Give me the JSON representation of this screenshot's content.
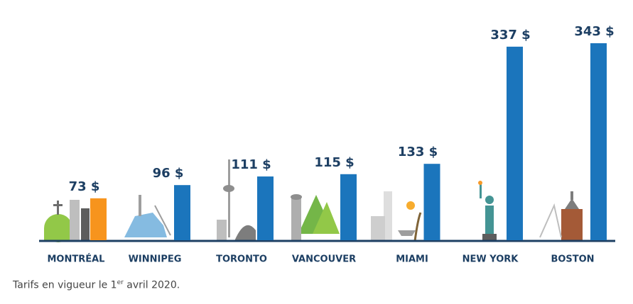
{
  "chart_data": {
    "type": "bar",
    "categories": [
      "MONTRÉAL",
      "WINNIPEG",
      "TORONTO",
      "VANCOUVER",
      "MIAMI",
      "NEW YORK",
      "BOSTON"
    ],
    "values": [
      73,
      96,
      111,
      115,
      133,
      337,
      343
    ],
    "value_labels": [
      "73 $",
      "96 $",
      "111 $",
      "115 $",
      "133 $",
      "337 $",
      "343 $"
    ],
    "colors": [
      "#f7941d",
      "#1b75bc",
      "#1b75bc",
      "#1b75bc",
      "#1b75bc",
      "#1b75bc",
      "#1b75bc"
    ]
  },
  "footnote": {
    "text": "Tarifs en vigueur le 1",
    "superscript": "er",
    "text_end": " avril 2020."
  }
}
